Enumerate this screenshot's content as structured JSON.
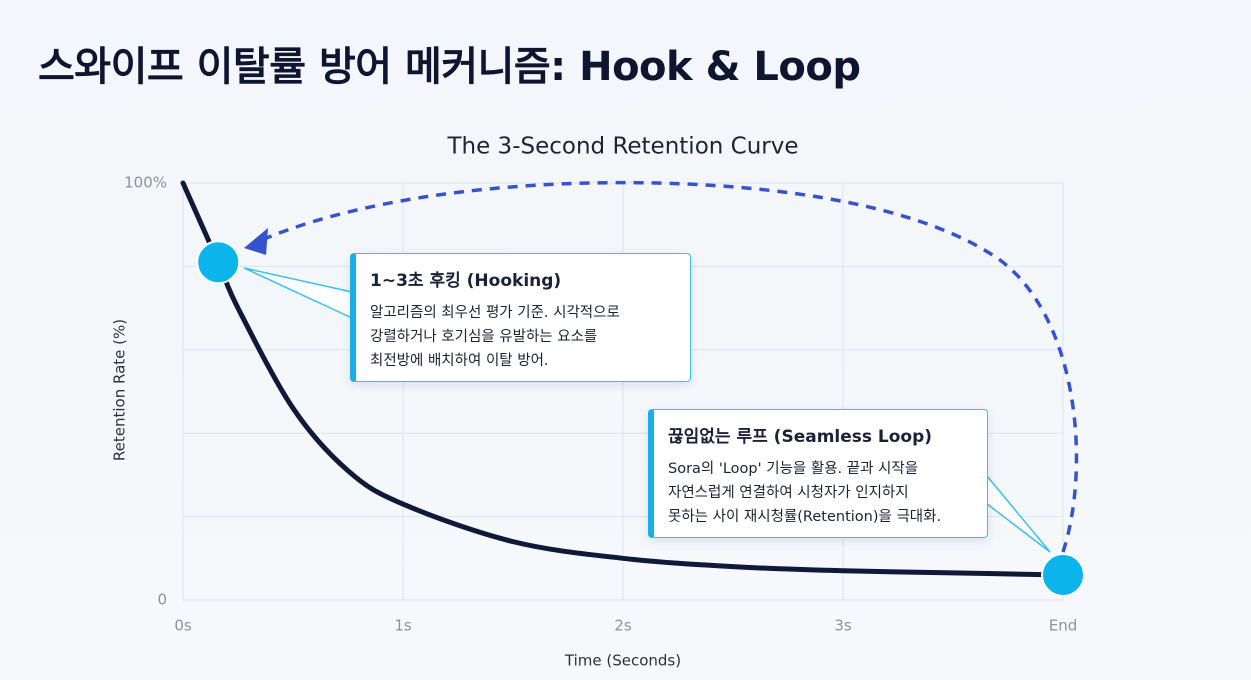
{
  "page_title": "스와이프 이탈률 방어 메커니즘: Hook & Loop",
  "chart_data": {
    "type": "line",
    "title": "The 3-Second Retention Curve",
    "x_label": "Time (Seconds)",
    "y_label": "Retention Rate (%)",
    "x": [
      0,
      0.16,
      0.25,
      0.5,
      0.75,
      1,
      1.5,
      2,
      2.5,
      3,
      3.5,
      4
    ],
    "values": [
      100,
      81,
      70,
      46,
      31,
      23,
      14,
      10,
      8,
      7,
      6.5,
      6
    ],
    "color": "#0f1a3a",
    "xlim": [
      0,
      4
    ],
    "ylim": [
      0,
      100
    ],
    "xticks": [
      {
        "value": 0,
        "label": "0s"
      },
      {
        "value": 1,
        "label": "1s"
      },
      {
        "value": 2,
        "label": "2s"
      },
      {
        "value": 3,
        "label": "3s"
      },
      {
        "value": 4,
        "label": "End"
      }
    ],
    "yticks": [
      0,
      {
        "value": 100,
        "label": "100%"
      }
    ],
    "ygrid": [
      20,
      40,
      60,
      80
    ],
    "grid": true,
    "highlight_points": [
      {
        "x": 0.16,
        "y": 81
      },
      {
        "x": 4,
        "y": 6
      }
    ],
    "highlight_color": "#0bb4ea",
    "annotations": [
      {
        "title": "1~3초 후킹 (Hooking)",
        "lines": [
          "알고리즘의 최우선 평가 기준. 시각적으로",
          "강렬하거나 호기심을 유발하는 요소를",
          "최전방에 배치하여 이탈 방어."
        ]
      },
      {
        "title": "끊임없는 루프 (Seamless Loop)",
        "lines": [
          "Sora의 'Loop' 기능을 활용. 끝과 시작을",
          "자연스럽게 연결하여 시청자가 인지하지",
          "못하는 사이 재시청률(Retention)을 극대화."
        ]
      }
    ]
  }
}
